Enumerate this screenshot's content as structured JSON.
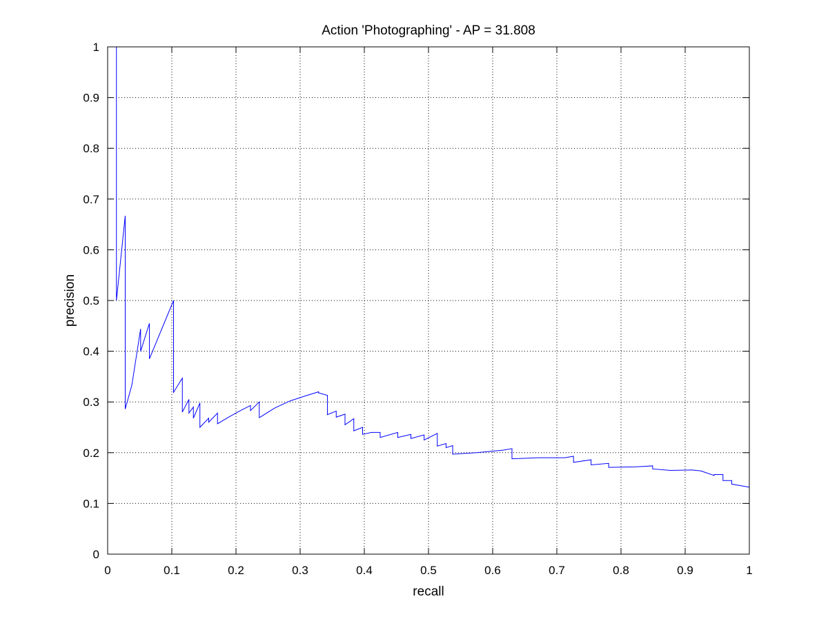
{
  "chart_data": {
    "type": "line",
    "title": "Action 'Photographing' - AP = 31.808",
    "xlabel": "recall",
    "ylabel": "precision",
    "xlim": [
      0,
      1
    ],
    "ylim": [
      0,
      1
    ],
    "grid": true,
    "xticks": [
      "0",
      "0.1",
      "0.2",
      "0.3",
      "0.4",
      "0.5",
      "0.6",
      "0.7",
      "0.8",
      "0.9",
      "1"
    ],
    "yticks": [
      "0",
      "0.1",
      "0.2",
      "0.3",
      "0.4",
      "0.5",
      "0.6",
      "0.7",
      "0.8",
      "0.9",
      "1"
    ],
    "series": [
      {
        "color": "#0000ff",
        "x": [
          0.0137,
          0.0137,
          0.0137,
          0.0274,
          0.0274,
          0.0377,
          0.0514,
          0.0514,
          0.0651,
          0.0651,
          0.1027,
          0.1027,
          0.1164,
          0.1164,
          0.1267,
          0.1267,
          0.1336,
          0.1336,
          0.1438,
          0.1438,
          0.1575,
          0.1575,
          0.1712,
          0.1712,
          0.1884,
          0.2055,
          0.2226,
          0.2226,
          0.2363,
          0.2363,
          0.2603,
          0.2842,
          0.3082,
          0.3288,
          0.3288,
          0.3425,
          0.3425,
          0.3562,
          0.3562,
          0.3699,
          0.3699,
          0.3836,
          0.3836,
          0.3973,
          0.3973,
          0.411,
          0.4247,
          0.4247,
          0.4521,
          0.4521,
          0.4726,
          0.4726,
          0.4932,
          0.4932,
          0.5137,
          0.5137,
          0.5274,
          0.5274,
          0.5377,
          0.5377,
          0.5753,
          0.6164,
          0.6301,
          0.6301,
          0.6712,
          0.7123,
          0.726,
          0.726,
          0.7534,
          0.7534,
          0.7808,
          0.7808,
          0.8219,
          0.8493,
          0.8493,
          0.8767,
          0.911,
          0.9247,
          0.9247,
          0.9452,
          0.9452,
          0.9589,
          0.9589,
          0.9726,
          0.9726,
          0.9863,
          1.0
        ],
        "y": [
          1.0,
          0.5,
          0.5,
          0.667,
          0.286,
          0.333,
          0.444,
          0.4,
          0.455,
          0.385,
          0.5,
          0.319,
          0.347,
          0.28,
          0.305,
          0.278,
          0.29,
          0.268,
          0.298,
          0.25,
          0.268,
          0.26,
          0.278,
          0.257,
          0.27,
          0.282,
          0.293,
          0.283,
          0.3,
          0.269,
          0.288,
          0.302,
          0.312,
          0.32,
          0.318,
          0.313,
          0.275,
          0.282,
          0.27,
          0.276,
          0.255,
          0.267,
          0.243,
          0.25,
          0.236,
          0.24,
          0.24,
          0.23,
          0.24,
          0.23,
          0.236,
          0.228,
          0.235,
          0.225,
          0.238,
          0.213,
          0.218,
          0.21,
          0.214,
          0.197,
          0.2,
          0.205,
          0.208,
          0.188,
          0.19,
          0.19,
          0.193,
          0.181,
          0.186,
          0.176,
          0.179,
          0.171,
          0.172,
          0.174,
          0.168,
          0.165,
          0.166,
          0.164,
          0.164,
          0.155,
          0.157,
          0.157,
          0.145,
          0.145,
          0.138,
          0.135,
          0.132
        ]
      }
    ]
  }
}
